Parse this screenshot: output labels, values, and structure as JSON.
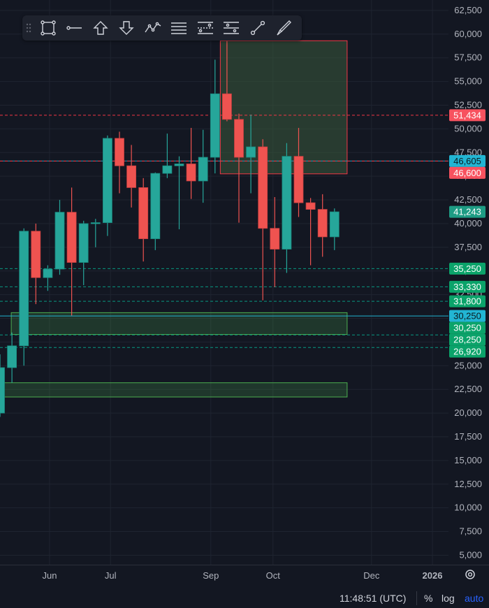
{
  "toolbar": {
    "tools": [
      {
        "name": "rectangle-tool-icon"
      },
      {
        "name": "horizontal-ray-tool-icon"
      },
      {
        "name": "arrow-up-tool-icon"
      },
      {
        "name": "arrow-down-tool-icon"
      },
      {
        "name": "path-tool-icon"
      },
      {
        "name": "parallel-lines-tool-icon"
      },
      {
        "name": "fib-retracement-tool-icon"
      },
      {
        "name": "fib-extension-tool-icon"
      },
      {
        "name": "trend-line-tool-icon"
      },
      {
        "name": "brush-tool-icon"
      }
    ]
  },
  "chart_data": {
    "type": "candlestick",
    "x_ticks": [
      "Jun",
      "Jul",
      "Sep",
      "Oct",
      "Dec",
      "2026"
    ],
    "y_ticks": [
      "62,500",
      "60,000",
      "57,500",
      "55,000",
      "52,500",
      "50,000",
      "47,500",
      "45,000",
      "42,500",
      "40,000",
      "37,500",
      "35,000",
      "32,500",
      "30,000",
      "27,500",
      "25,000",
      "22,500",
      "20,000",
      "17,500",
      "15,000",
      "12,500",
      "10,000",
      "7,500",
      "5,000"
    ],
    "ylim": [
      4000,
      63600
    ],
    "candles": [
      {
        "o": 20000,
        "h": 26200,
        "l": 19600,
        "c": 24800
      },
      {
        "o": 24800,
        "h": 28500,
        "l": 23200,
        "c": 27100
      },
      {
        "o": 27100,
        "h": 39500,
        "l": 25000,
        "c": 39200
      },
      {
        "o": 39200,
        "h": 40000,
        "l": 31500,
        "c": 34300
      },
      {
        "o": 34300,
        "h": 35600,
        "l": 32900,
        "c": 35200
      },
      {
        "o": 35200,
        "h": 42500,
        "l": 34600,
        "c": 41200
      },
      {
        "o": 41200,
        "h": 43800,
        "l": 30300,
        "c": 35900
      },
      {
        "o": 35900,
        "h": 40300,
        "l": 33500,
        "c": 40000
      },
      {
        "o": 40000,
        "h": 40500,
        "l": 37500,
        "c": 40100
      },
      {
        "o": 40100,
        "h": 49300,
        "l": 38700,
        "c": 49000
      },
      {
        "o": 49000,
        "h": 49700,
        "l": 43200,
        "c": 46100
      },
      {
        "o": 46100,
        "h": 48300,
        "l": 41700,
        "c": 43800
      },
      {
        "o": 43800,
        "h": 44800,
        "l": 36000,
        "c": 38400
      },
      {
        "o": 38400,
        "h": 45400,
        "l": 37200,
        "c": 45300
      },
      {
        "o": 45300,
        "h": 49500,
        "l": 44800,
        "c": 46100
      },
      {
        "o": 46100,
        "h": 47100,
        "l": 39400,
        "c": 46300
      },
      {
        "o": 46300,
        "h": 50100,
        "l": 42600,
        "c": 44500
      },
      {
        "o": 44500,
        "h": 49900,
        "l": 42200,
        "c": 47000
      },
      {
        "o": 47000,
        "h": 57300,
        "l": 45300,
        "c": 53700
      },
      {
        "o": 53700,
        "h": 59300,
        "l": 50800,
        "c": 51000
      },
      {
        "o": 51000,
        "h": 51600,
        "l": 40100,
        "c": 47000
      },
      {
        "o": 47000,
        "h": 51500,
        "l": 43200,
        "c": 48100
      },
      {
        "o": 48100,
        "h": 48900,
        "l": 31900,
        "c": 39500
      },
      {
        "o": 39500,
        "h": 42800,
        "l": 33300,
        "c": 37300
      },
      {
        "o": 37300,
        "h": 48500,
        "l": 34800,
        "c": 47100
      },
      {
        "o": 47100,
        "h": 50100,
        "l": 40700,
        "c": 42200
      },
      {
        "o": 42200,
        "h": 42700,
        "l": 35600,
        "c": 41500
      },
      {
        "o": 41500,
        "h": 43100,
        "l": 36500,
        "c": 38600
      },
      {
        "o": 38600,
        "h": 41600,
        "l": 37200,
        "c": 41243
      }
    ],
    "price_lines": [
      {
        "price": 51434,
        "label": "51,434",
        "style": "dashed",
        "color": "#f23645",
        "badge": "#f7525f",
        "text_color": "#ffffff"
      },
      {
        "price": 46605,
        "label": "46,605",
        "style": "solid",
        "color": "#2a9bb8",
        "badge": "#22b5d3",
        "text_color": "#0b1a1f"
      },
      {
        "price": 46600,
        "label": "46,600",
        "style": "dashed",
        "color": "#f23645",
        "badge": "#f7525f",
        "text_color": "#ffffff"
      },
      {
        "price": 41243,
        "label": "41,243",
        "style": "none",
        "color": "#089981",
        "badge": "#1e9c84",
        "text_color": "#ffffff"
      },
      {
        "price": 35250,
        "label": "35,250",
        "style": "dashed",
        "color": "#089981",
        "badge": "#0ba36a",
        "text_color": "#ffffff"
      },
      {
        "price": 33330,
        "label": "33,330",
        "style": "dashed",
        "color": "#089981",
        "badge": "#0ba36a",
        "text_color": "#ffffff"
      },
      {
        "price": 31800,
        "label": "31,800",
        "style": "dashed",
        "color": "#089981",
        "badge": "#0ba36a",
        "text_color": "#ffffff"
      },
      {
        "price": 30250,
        "label": "30,250",
        "style": "solid",
        "color": "#22b5d3",
        "badge": "#22b5d3",
        "text_color": "#0b1a1f"
      },
      {
        "price": 30250,
        "label": "30,250",
        "style": "none",
        "color": "#089981",
        "badge": "#0ba36a",
        "text_color": "#ffffff"
      },
      {
        "price": 28250,
        "label": "28,250",
        "style": "dashed",
        "color": "#089981",
        "badge": "#0ba36a",
        "text_color": "#ffffff"
      },
      {
        "price": 26920,
        "label": "26,920",
        "style": "dashed",
        "color": "#089981",
        "badge": "#0ba36a",
        "text_color": "#ffffff"
      }
    ],
    "zones": [
      {
        "x_from": 18.5,
        "x_to": 29,
        "y_top": 59300,
        "y_bottom": 45250,
        "fill": "rgba(58,90,60,0.55)",
        "stroke": "#f23645"
      },
      {
        "x_from": 1,
        "x_to": 29,
        "y_top": 30600,
        "y_bottom": 28300,
        "fill": "rgba(76,175,80,0.22)",
        "stroke": "#4caf50"
      },
      {
        "x_from": 0,
        "x_to": 29,
        "y_top": 23200,
        "y_bottom": 21700,
        "fill": "rgba(76,175,80,0.22)",
        "stroke": "#4caf50"
      }
    ],
    "colors": {
      "up": "#26a69a",
      "down": "#ef5350",
      "background": "#131722",
      "grid": "#1f2430",
      "axis_text": "#b2b5be"
    }
  },
  "footer": {
    "clock": "11:48:51 (UTC)",
    "percent": "%",
    "log": "log",
    "auto": "auto"
  }
}
